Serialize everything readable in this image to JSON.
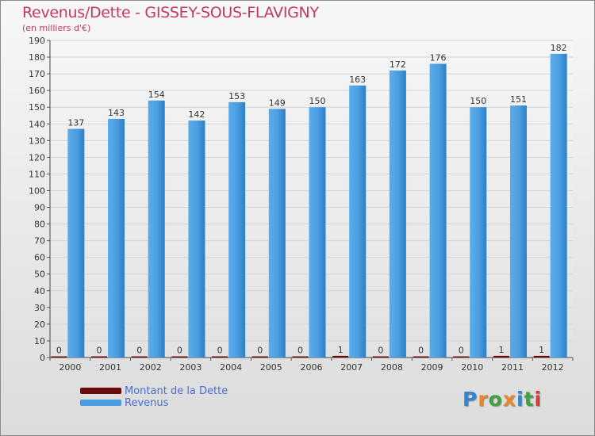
{
  "chart_data": {
    "type": "bar",
    "title": "Revenus/Dette - GISSEY-SOUS-FLAVIGNY",
    "subtitle": "(en milliers d'€)",
    "xlabel": "",
    "ylabel": "",
    "ylim": [
      0,
      190
    ],
    "yticks": [
      0,
      10,
      20,
      30,
      40,
      50,
      60,
      70,
      80,
      90,
      100,
      110,
      120,
      130,
      140,
      150,
      160,
      170,
      180,
      190
    ],
    "categories": [
      "2000",
      "2001",
      "2002",
      "2003",
      "2004",
      "2005",
      "2006",
      "2007",
      "2008",
      "2009",
      "2010",
      "2011",
      "2012"
    ],
    "series": [
      {
        "name": "Montant de la Dette",
        "color": "#6b0a0a",
        "values": [
          0,
          0,
          0,
          0,
          0,
          0,
          0,
          1,
          0,
          0,
          0,
          1,
          1
        ]
      },
      {
        "name": "Revenus",
        "color": "#4a9de0",
        "values": [
          137,
          143,
          154,
          142,
          153,
          149,
          150,
          163,
          172,
          176,
          150,
          151,
          182
        ]
      }
    ],
    "legend_position": "bottom-left"
  },
  "brand": {
    "letters": [
      "P",
      "r",
      "o",
      "x",
      "i",
      "t",
      "i"
    ],
    "colors": [
      "#2f86d6",
      "#e8862a",
      "#3fa23f",
      "#e8862a",
      "#2f86d6",
      "#3fa23f",
      "#d23b3b"
    ]
  }
}
